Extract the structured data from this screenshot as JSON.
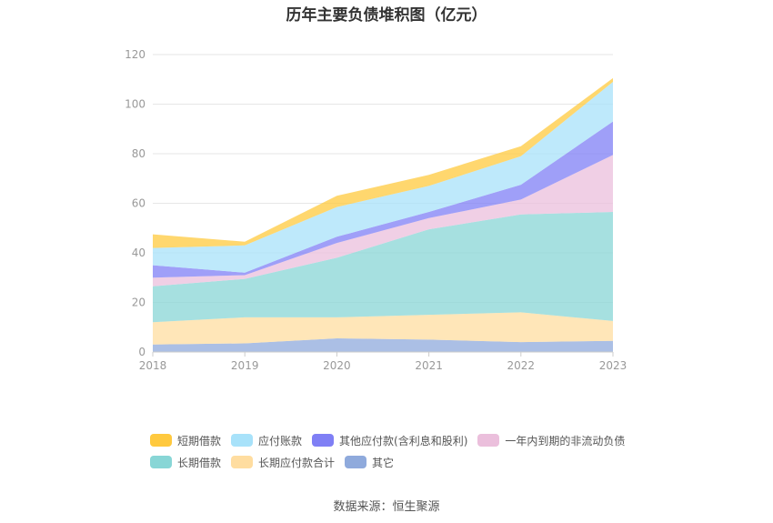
{
  "chart_data": {
    "type": "area",
    "stacked": true,
    "title": "历年主要负债堆积图（亿元）",
    "x": [
      "2018",
      "2019",
      "2020",
      "2021",
      "2022",
      "2023"
    ],
    "ylim": [
      0,
      120
    ],
    "yticks": [
      0,
      20,
      40,
      60,
      80,
      100,
      120
    ],
    "grid": true,
    "legend_position": "bottom",
    "series": [
      {
        "name": "其它",
        "color": "#8faadc",
        "values": [
          3.0,
          3.5,
          5.5,
          5.0,
          4.0,
          4.5
        ]
      },
      {
        "name": "长期应付款合计",
        "color": "#ffdda0",
        "values": [
          9.0,
          10.5,
          8.5,
          10.0,
          12.0,
          8.0
        ]
      },
      {
        "name": "长期借款",
        "color": "#88d6d6",
        "values": [
          14.5,
          15.5,
          24.0,
          34.5,
          39.5,
          44.0
        ]
      },
      {
        "name": "一年内到期的非流动负债",
        "color": "#ebbfdc",
        "values": [
          3.5,
          1.5,
          6.0,
          4.5,
          6.0,
          23.0
        ]
      },
      {
        "name": "其他应付款(含利息和股利)",
        "color": "#7f7ff5",
        "values": [
          5.0,
          1.0,
          2.5,
          2.5,
          6.0,
          13.5
        ]
      },
      {
        "name": "应付账款",
        "color": "#a8e2fa",
        "values": [
          7.0,
          11.0,
          12.0,
          10.5,
          11.5,
          16.0
        ]
      },
      {
        "name": "短期借款",
        "color": "#ffc93e",
        "values": [
          5.5,
          1.5,
          4.5,
          4.5,
          4.0,
          1.5
        ]
      }
    ],
    "legend": {
      "rows": [
        [
          {
            "name": "短期借款",
            "color": "#ffc93e"
          },
          {
            "name": "应付账款",
            "color": "#a8e2fa"
          },
          {
            "name": "其他应付款(含利息和股利)",
            "color": "#7f7ff5"
          },
          {
            "name": "一年内到期的非流动负债",
            "color": "#ebbfdc"
          }
        ],
        [
          {
            "name": "长期借款",
            "color": "#88d6d6"
          },
          {
            "name": "长期应付款合计",
            "color": "#ffdda0"
          },
          {
            "name": "其它",
            "color": "#8faadc"
          }
        ]
      ]
    },
    "source": "数据来源：恒生聚源"
  }
}
